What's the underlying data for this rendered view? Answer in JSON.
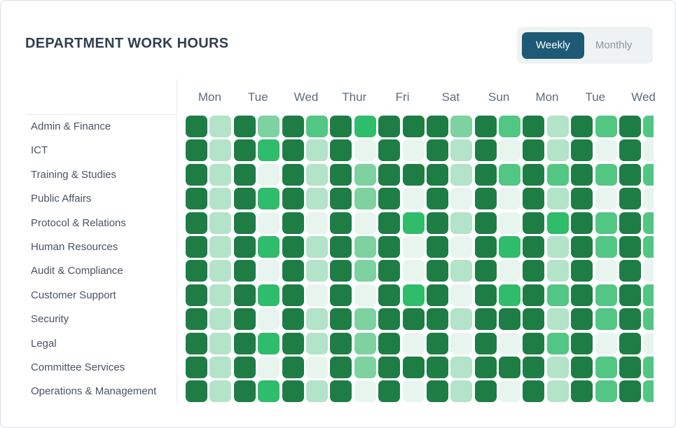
{
  "header": {
    "title": "DEPARTMENT WORK HOURS"
  },
  "toggle": {
    "weekly_label": "Weekly",
    "monthly_label": "Monthly",
    "active": "Weekly",
    "active_bg": "#1e5a76",
    "active_text": "#ffffff",
    "inactive_text": "#8d96a4",
    "group_bg": "#eff2f3"
  },
  "chart_data": {
    "type": "heatmap",
    "title": "DEPARTMENT WORK HOURS",
    "columns": [
      "Mon",
      "Tue",
      "Wed",
      "Thur",
      "Fri",
      "Sat",
      "Sun",
      "Mon",
      "Tue",
      "Wed"
    ],
    "cells_per_column_label": 2,
    "value_scale": "0 = lowest intensity, 5 = highest intensity",
    "palette": [
      "#e8f5ee",
      "#b3e3c8",
      "#7dd2a0",
      "#52c683",
      "#2fbc6b",
      "#1e7d45"
    ],
    "grid": false,
    "legend": false,
    "rows": [
      {
        "label": "Admin & Finance",
        "values": [
          5,
          1,
          5,
          2,
          5,
          3,
          5,
          4,
          5,
          5,
          5,
          2,
          5,
          3,
          5,
          1,
          5,
          3,
          5,
          3
        ]
      },
      {
        "label": "ICT",
        "values": [
          5,
          1,
          5,
          4,
          5,
          1,
          5,
          0,
          5,
          0,
          5,
          1,
          5,
          0,
          5,
          1,
          5,
          0,
          5,
          0
        ]
      },
      {
        "label": "Training & Studies",
        "values": [
          5,
          1,
          5,
          0,
          5,
          1,
          5,
          2,
          5,
          5,
          5,
          1,
          5,
          3,
          5,
          3,
          5,
          3,
          5,
          3
        ]
      },
      {
        "label": "Public Affairs",
        "values": [
          5,
          1,
          5,
          4,
          5,
          1,
          5,
          2,
          5,
          0,
          5,
          0,
          5,
          0,
          5,
          1,
          5,
          0,
          5,
          0
        ]
      },
      {
        "label": "Protocol & Relations",
        "values": [
          5,
          1,
          5,
          0,
          5,
          0,
          5,
          0,
          5,
          4,
          5,
          1,
          5,
          0,
          5,
          4,
          5,
          3,
          5,
          3
        ]
      },
      {
        "label": "Human Resources",
        "values": [
          5,
          1,
          5,
          4,
          5,
          1,
          5,
          2,
          5,
          0,
          5,
          0,
          5,
          4,
          5,
          1,
          5,
          3,
          5,
          3
        ]
      },
      {
        "label": "Audit & Compliance",
        "values": [
          5,
          1,
          5,
          0,
          5,
          1,
          5,
          2,
          5,
          0,
          5,
          1,
          5,
          0,
          5,
          1,
          5,
          0,
          5,
          0
        ]
      },
      {
        "label": "Customer Support",
        "values": [
          5,
          1,
          5,
          4,
          5,
          0,
          5,
          0,
          5,
          4,
          5,
          0,
          5,
          4,
          5,
          3,
          5,
          3,
          5,
          3
        ]
      },
      {
        "label": "Security",
        "values": [
          5,
          1,
          5,
          0,
          5,
          1,
          5,
          2,
          5,
          5,
          5,
          1,
          5,
          5,
          5,
          1,
          5,
          3,
          5,
          3
        ]
      },
      {
        "label": "Legal",
        "values": [
          5,
          1,
          5,
          4,
          5,
          1,
          5,
          2,
          5,
          0,
          5,
          0,
          5,
          0,
          5,
          3,
          5,
          0,
          5,
          0
        ]
      },
      {
        "label": "Committee Services",
        "values": [
          5,
          1,
          5,
          0,
          5,
          0,
          5,
          2,
          5,
          5,
          5,
          1,
          5,
          5,
          5,
          1,
          5,
          3,
          5,
          3
        ]
      },
      {
        "label": "Operations & Management",
        "values": [
          5,
          1,
          5,
          4,
          5,
          1,
          5,
          0,
          5,
          0,
          5,
          1,
          5,
          0,
          5,
          1,
          5,
          3,
          5,
          3
        ]
      }
    ]
  }
}
